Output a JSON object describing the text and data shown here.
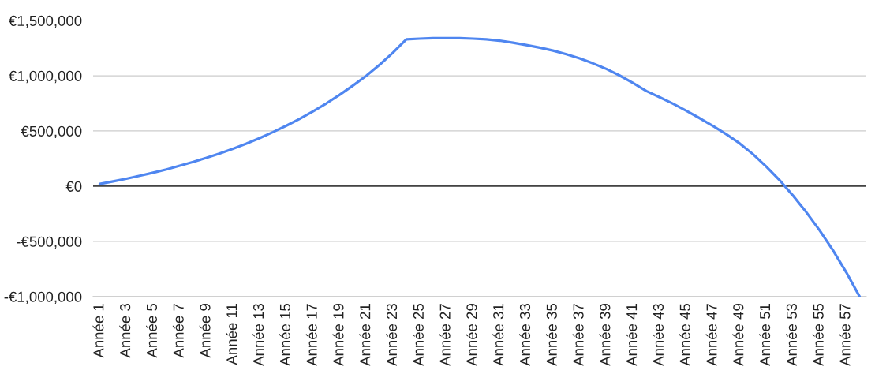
{
  "chart_data": {
    "type": "line",
    "categories": [
      "Année 1",
      null,
      "Année 3",
      null,
      "Année 5",
      null,
      "Année 7",
      null,
      "Année 9",
      null,
      "Année 11",
      null,
      "Année 13",
      null,
      "Année 15",
      null,
      "Année 17",
      null,
      "Année 19",
      null,
      "Année 21",
      null,
      "Année 23",
      null,
      "Année 25",
      null,
      "Année 27",
      null,
      "Année 29",
      null,
      "Année 31",
      null,
      "Année 33",
      null,
      "Année 35",
      null,
      "Année 37",
      null,
      "Année 39",
      null,
      "Année 41",
      null,
      "Année 43",
      null,
      "Année 45",
      null,
      "Année 47",
      null,
      "Année 49",
      null,
      "Année 51",
      null,
      "Année 53",
      null,
      "Année 55",
      null,
      "Année 57",
      null
    ],
    "series": [
      {
        "color": "#4f86f0",
        "values": [
          20000,
          43000,
          68000,
          94000,
          122000,
          152000,
          185000,
          220000,
          257000,
          297000,
          340000,
          386000,
          436000,
          490000,
          548000,
          610000,
          678000,
          750000,
          828000,
          912000,
          1000000,
          1100000,
          1210000,
          1330000,
          1336000,
          1340000,
          1341000,
          1340000,
          1336000,
          1330000,
          1318000,
          1300000,
          1278000,
          1255000,
          1228000,
          1195000,
          1158000,
          1112000,
          1062000,
          1002000,
          935000,
          862000,
          806000,
          747000,
          683000,
          616000,
          545000,
          470000,
          388000,
          290000,
          178000,
          55000,
          -85000,
          -235000,
          -400000,
          -580000,
          -780000,
          -1000000
        ]
      }
    ],
    "ylim": [
      -1000000,
      1500000
    ],
    "yticks": [
      {
        "value": -1000000,
        "label": "-€1,000,000"
      },
      {
        "value": -500000,
        "label": "-€500,000"
      },
      {
        "value": 0,
        "label": "€0"
      },
      {
        "value": 500000,
        "label": "€500,000"
      },
      {
        "value": 1000000,
        "label": "€1,000,000"
      },
      {
        "value": 1500000,
        "label": "€1,500,000"
      }
    ],
    "grid": "y",
    "ref_lines": [
      {
        "axis": "y",
        "value": 0,
        "color": "#444444"
      }
    ],
    "line_style": "solid"
  }
}
